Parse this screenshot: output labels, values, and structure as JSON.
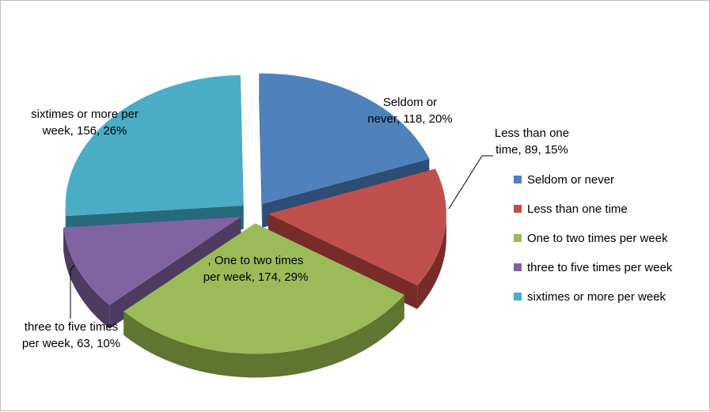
{
  "chart_data": {
    "type": "pie",
    "title": "",
    "slices": [
      {
        "name": "Seldom or never",
        "value": 118,
        "percent": "20%",
        "color": "#4F81BD",
        "dark": "#2C4D75",
        "label_lines": [
          "Seldom or",
          "never, 118, 20%"
        ]
      },
      {
        "name": "Less than one time",
        "value": 89,
        "percent": "15%",
        "color": "#C0504D",
        "dark": "#772C2A",
        "label_lines": [
          "Less than one",
          "time, 89, 15%"
        ]
      },
      {
        "name": "One to two times per week",
        "value": 174,
        "percent": "29%",
        "color": "#9BBB59",
        "dark": "#5F7530",
        "label_lines": [
          ", One to two times",
          "per week, 174, 29%"
        ]
      },
      {
        "name": "three to five times per week",
        "value": 63,
        "percent": "10%",
        "color": "#8064A2",
        "dark": "#4D3B62",
        "label_lines": [
          "three to five times",
          "per week, 63, 10%"
        ]
      },
      {
        "name": "sixtimes or more per week",
        "value": 156,
        "percent": "26%",
        "color": "#4BACC6",
        "dark": "#276A7C",
        "label_lines": [
          "sixtimes or more per",
          "week, 156, 26%"
        ]
      }
    ],
    "legend_position": "right",
    "exploded": true,
    "style": "3d"
  }
}
